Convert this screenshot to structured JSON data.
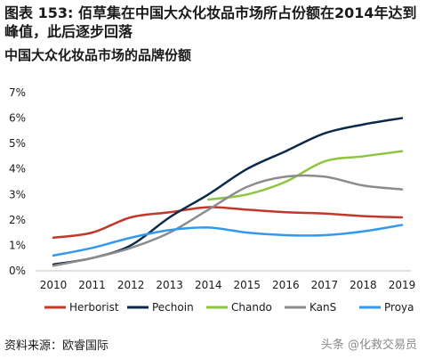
{
  "header": {
    "title": "图表 153: 佰草集在中国大众化妆品市场所占份额在2014年达到峰值，此后逐步回落",
    "subtitle": "中国大众化妆品市场的品牌份额"
  },
  "footer": {
    "source": "资料来源：欧睿国际",
    "watermark": "头条 @化救交易员"
  },
  "chart_data": {
    "type": "line",
    "x": [
      "2010",
      "2011",
      "2012",
      "2013",
      "2014",
      "2015",
      "2016",
      "2017",
      "2018",
      "2019"
    ],
    "ylim": [
      0,
      7
    ],
    "yticks": [
      "0%",
      "1%",
      "2%",
      "3%",
      "4%",
      "5%",
      "6%",
      "7%"
    ],
    "grid": false,
    "legend_position": "bottom",
    "series": [
      {
        "name": "Herborist",
        "color": "#c0392b",
        "values": [
          1.3,
          1.5,
          2.1,
          2.3,
          2.5,
          2.4,
          2.3,
          2.25,
          2.15,
          2.1
        ]
      },
      {
        "name": "Pechoin",
        "color": "#0b2a4a",
        "values": [
          0.25,
          0.5,
          1.0,
          2.1,
          3.0,
          4.0,
          4.7,
          5.4,
          5.75,
          6.0
        ]
      },
      {
        "name": "Chando",
        "color": "#8cc63f",
        "values": [
          null,
          null,
          null,
          null,
          2.8,
          3.0,
          3.5,
          4.3,
          4.5,
          4.7
        ]
      },
      {
        "name": "KanS",
        "color": "#8c8c8c",
        "values": [
          0.2,
          0.5,
          0.9,
          1.5,
          2.4,
          3.3,
          3.7,
          3.7,
          3.35,
          3.2
        ]
      },
      {
        "name": "Proya",
        "color": "#3399ee",
        "values": [
          0.6,
          0.9,
          1.3,
          1.6,
          1.7,
          1.5,
          1.4,
          1.4,
          1.55,
          1.8
        ]
      }
    ]
  }
}
